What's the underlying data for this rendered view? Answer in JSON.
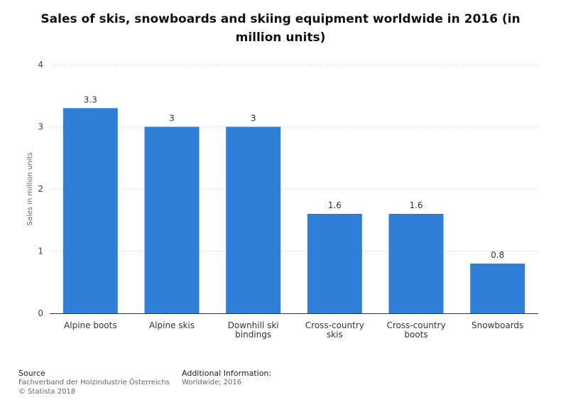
{
  "chart_data": {
    "type": "bar",
    "title": "Sales of skis, snowboards and skiing equipment worldwide in 2016 (in million units)",
    "xlabel": "",
    "ylabel": "Sales in million units",
    "ylim": [
      0,
      4
    ],
    "yticks": [
      "0",
      "1",
      "2",
      "3",
      "4"
    ],
    "grid": true,
    "categories": [
      [
        "Alpine boots"
      ],
      [
        "Alpine skis"
      ],
      [
        "Downhill ski",
        "bindings"
      ],
      [
        "Cross-country",
        "skis"
      ],
      [
        "Cross-country",
        "boots"
      ],
      [
        "Snowboards"
      ]
    ],
    "values": [
      3.3,
      3,
      3,
      1.6,
      1.6,
      0.8
    ],
    "data_labels": [
      "3.3",
      "3",
      "3",
      "1.6",
      "1.6",
      "0.8"
    ],
    "bar_color": "#2f7ed8"
  },
  "footer": {
    "source_heading": "Source",
    "source_lines": [
      "Fachverband der Holzindustrie Österreichs",
      "© Statista 2018"
    ],
    "info_heading": "Additional Information:",
    "info_lines": [
      "Worldwide; 2016"
    ]
  }
}
